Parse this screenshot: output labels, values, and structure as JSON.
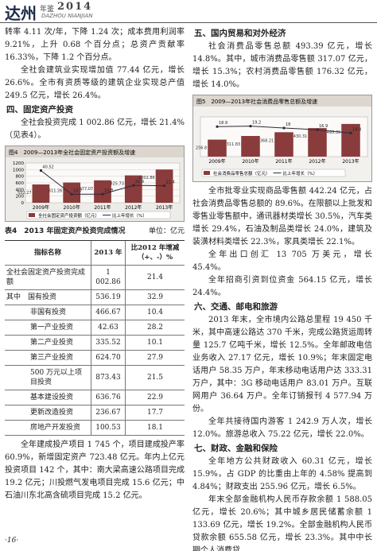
{
  "header": {
    "title": "达州",
    "subtitle": "年鉴",
    "year": "2014",
    "pinyin": "DAZHOU NIANJIAN"
  },
  "page_number": "·16·",
  "col1": {
    "p1": "转率 4.11 次/年，下降 1.24 次；成本费用利润率 9.21%，上升 0.68 个百分点；总资产贡献率 16.33%，下降 1.2 个百分点。",
    "p2": "全社会建筑业实现增加值 77.44 亿元，增长 26.6%。全市有资质等级的建筑企业实现总产值 249.5 亿元，增长 26.4%。",
    "h4": "四、固定资产投资",
    "p3": "全社会投资完成 1 002.86 亿元，增长 21.4%（见表4）。",
    "p4": "全年建成投产项目 1 745 个，项目建成投产率 60.9%，新增固定资产 723.48 亿元。年内上亿元投资项目 142 个，其中：南大梁高速公路项目完成 19.2 亿元；川投燃气发电项目完成 15.6 亿元；中石油川东北高含硫项目完成 15.2 亿元。"
  },
  "col2": {
    "h5": "五、国内贸易和对外经济",
    "p1": "社会消费品零售总额 493.39 亿元，增长 14.8%。其中，城市消费品零售额 317.07 亿元，增长 15.3%；农村消费品零售额 176.32 亿元，增长 14.0%。",
    "p2": "全市批零业实现商品零售额 442.24 亿元，占社会消费品零售总额的 89.6%。在限额以上批发和零售业零售额中，通讯器材类增长 30.5%，汽车类增长 29.4%，石油及制品类增长 24.0%，建筑及装潢材料类增长 22.3%，家具类增长 22.1%。",
    "p3": "全年出口创汇 13 705 万美元，增长 45.4%。",
    "p4": "全年招商引资到位资金 564.15 亿元，增长 24.4%。",
    "h6": "六、交通、邮电和旅游",
    "p5": "2013 年末，全市境内公路总里程 19 450 千米，其中高速公路达 370 千米，完成公路货运周转量 125.7 亿吨千米，增长 12.5%。全年邮政电信业务收入 27.17 亿元，增长 10.9%；年末固定电话用户 58.35 万户，年末移动电话用户达 333.31 万户，其中：3G 移动电话用户 83.01 万户。互联网用户 36.64 万户。全年订销报刊 4 577.94 万份。",
    "p6": "全年共接待国内游客 1 242.9 万人次，增长 12.0%。旅游总收入 75.22 亿元，增长 22.0%。",
    "h7": "七、财政、金融和保险",
    "p7": "全年地方公共财政收入 60.31 亿元，增长 15.9%，占 GDP 的比重由上年的 4.58% 提高到 4.84%；财政支出 255.96 亿元，增长 6.5%。",
    "p8": "年末全部金融机构人民币存款余额 1 588.05 亿元，增长 20.6%；其中城乡居民储蓄余额 1 133.69 亿元，增长 19.2%。全部金融机构人民币贷款余额 655.58 亿元，增长 23.3%。其中中长期个人消费贷"
  },
  "table": {
    "title": "表4　2013 年固定资产投资完成情况",
    "unit": "单位：亿元",
    "columns": [
      "指标名称",
      "2013 年",
      "比2012 年增减（+、-）%"
    ],
    "rows": [
      [
        "全社会固定资产投资完成额",
        "1 002.86",
        "21.4"
      ],
      [
        "其中　国有投资",
        "536.19",
        "32.9"
      ],
      [
        "非国有投资",
        "466.67",
        "10.4"
      ],
      [
        "第一产业投资",
        "42.63",
        "28.2"
      ],
      [
        "第二产业投资",
        "335.52",
        "10.1"
      ],
      [
        "第三产业投资",
        "624.70",
        "27.9"
      ],
      [
        "500 万元以上项目投资",
        "873.43",
        "21.5"
      ],
      [
        "基本建设投资",
        "636.76",
        "22.9"
      ],
      [
        "更新改造投资",
        "236.67",
        "17.7"
      ],
      [
        "房地产开发投资",
        "100.53",
        "18.1"
      ]
    ]
  },
  "chart_data": [
    {
      "type": "combo",
      "title": "图4　2009—2013年全社会固定资产投资额及增速",
      "categories": [
        "2009年",
        "2010年",
        "2011年",
        "2012年",
        "2013年"
      ],
      "series": [
        {
          "name": "全社会固定资产投资额（亿元）",
          "type": "bar",
          "color": "#8a3b3b",
          "values": [
            552.27,
            611.26,
            677.07,
            825.73,
            1002.86
          ]
        },
        {
          "name": "比上年增长（%）",
          "type": "line",
          "axis": "y2",
          "color": "#2b2b3a",
          "values": [
            40.52,
            10.7,
            10.8,
            21.9,
            21.4
          ]
        }
      ],
      "ylim": [
        0,
        1200
      ],
      "yticks": [
        0,
        200,
        400,
        600,
        800,
        1000,
        1200
      ],
      "y2lim": [
        0,
        50
      ]
    },
    {
      "type": "combo",
      "title": "图5　2009—2013年社会消费品零售总额及增速",
      "categories": [
        "2009年",
        "2010年",
        "2011年",
        "2012年",
        "2013年"
      ],
      "series": [
        {
          "name": "社会消费品零售总额（亿元）",
          "type": "bar",
          "color": "#8a3b3b",
          "values": [
            256.8,
            311.83,
            368.21,
            430.31,
            493.39
          ]
        },
        {
          "name": "比上年增长（%）",
          "type": "line",
          "axis": "y2",
          "color": "#2b2b3a",
          "values": [
            18.9,
            19.2,
            18.0,
            16.9,
            14.8
          ]
        }
      ],
      "ylim": [
        0,
        600
      ],
      "y2lim": [
        0,
        25
      ]
    }
  ]
}
